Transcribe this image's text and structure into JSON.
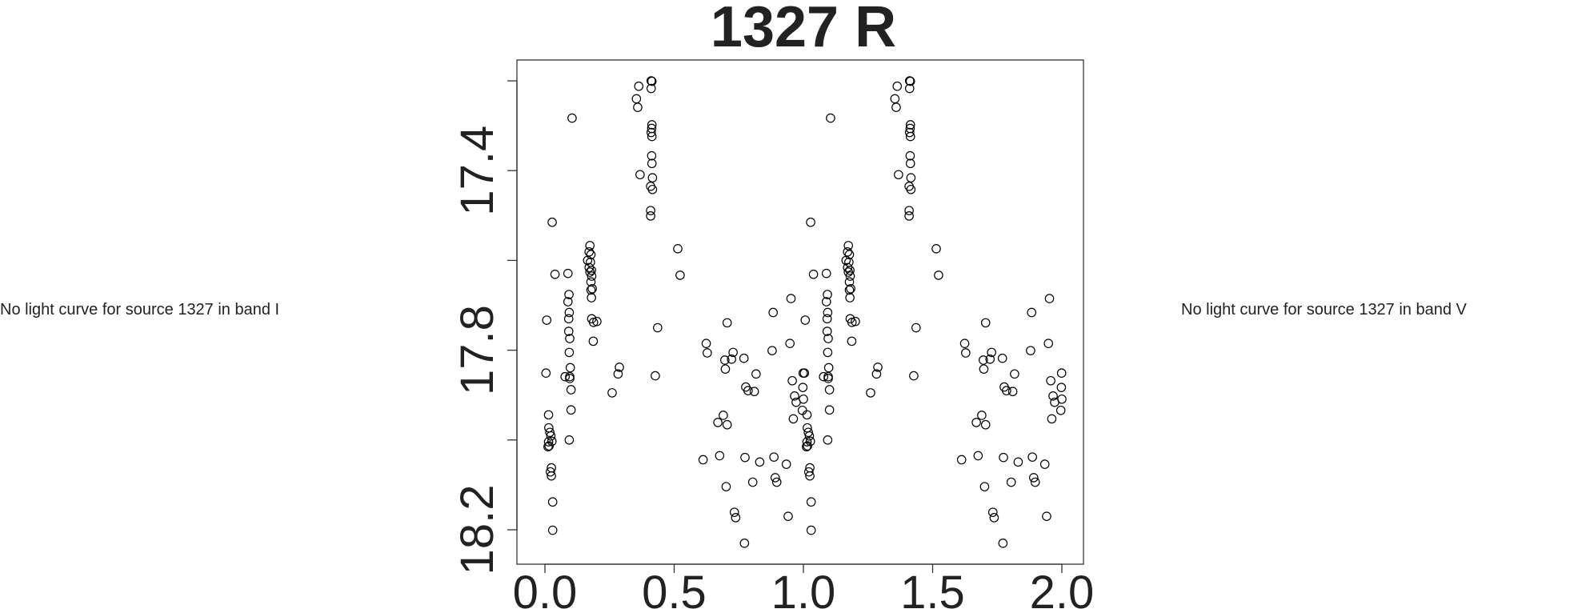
{
  "left_message": "No light curve for source 1327 in band I",
  "right_message": "No light curve for source 1327 in band V",
  "chart_data": {
    "type": "scatter",
    "title": "1327 R",
    "xlabel": "",
    "ylabel": "",
    "xlim": [
      0.0,
      2.0
    ],
    "ylim": [
      18.2,
      17.2
    ],
    "y_reversed": true,
    "x_ticks": [
      0.0,
      0.5,
      1.0,
      1.5,
      2.0
    ],
    "x_tick_labels": [
      "0.0",
      "0.5",
      "1.0",
      "1.5",
      "2.0"
    ],
    "y_ticks": [
      17.2,
      17.4,
      17.6,
      17.8,
      18.0,
      18.2
    ],
    "y_tick_labels": [
      "",
      "17.4",
      "",
      "17.8",
      "",
      "18.2"
    ],
    "grid": false,
    "marker": "open-circle",
    "marker_color": "#000000",
    "repeat_period": 1.0,
    "repeat_cycles": 2,
    "points": [
      [
        0.004,
        17.851
      ],
      [
        0.007,
        17.733
      ],
      [
        0.014,
        17.944
      ],
      [
        0.015,
        17.973
      ],
      [
        0.019,
        17.983
      ],
      [
        0.023,
        17.991
      ],
      [
        0.027,
        18.003
      ],
      [
        0.014,
        18.004
      ],
      [
        0.012,
        18.015
      ],
      [
        0.016,
        18.013
      ],
      [
        0.025,
        18.062
      ],
      [
        0.021,
        18.071
      ],
      [
        0.025,
        18.08
      ],
      [
        0.028,
        17.515
      ],
      [
        0.03,
        18.138
      ],
      [
        0.03,
        18.201
      ],
      [
        0.039,
        17.631
      ],
      [
        0.078,
        17.859
      ],
      [
        0.089,
        17.629
      ],
      [
        0.093,
        17.676
      ],
      [
        0.089,
        17.692
      ],
      [
        0.094,
        17.716
      ],
      [
        0.092,
        17.73
      ],
      [
        0.092,
        17.758
      ],
      [
        0.096,
        17.774
      ],
      [
        0.094,
        17.805
      ],
      [
        0.098,
        17.839
      ],
      [
        0.096,
        17.859
      ],
      [
        0.096,
        17.863
      ],
      [
        0.101,
        17.888
      ],
      [
        0.101,
        17.933
      ],
      [
        0.094,
        18.0
      ],
      [
        0.105,
        17.283
      ],
      [
        0.174,
        17.567
      ],
      [
        0.171,
        17.581
      ],
      [
        0.178,
        17.587
      ],
      [
        0.165,
        17.6
      ],
      [
        0.176,
        17.604
      ],
      [
        0.171,
        17.616
      ],
      [
        0.18,
        17.622
      ],
      [
        0.174,
        17.626
      ],
      [
        0.181,
        17.635
      ],
      [
        0.178,
        17.648
      ],
      [
        0.183,
        17.663
      ],
      [
        0.178,
        17.666
      ],
      [
        0.18,
        17.683
      ],
      [
        0.181,
        17.73
      ],
      [
        0.188,
        17.738
      ],
      [
        0.201,
        17.736
      ],
      [
        0.187,
        17.78
      ],
      [
        0.26,
        17.895
      ],
      [
        0.283,
        17.853
      ],
      [
        0.288,
        17.838
      ],
      [
        0.354,
        17.24
      ],
      [
        0.359,
        17.259
      ],
      [
        0.363,
        17.212
      ],
      [
        0.368,
        17.409
      ],
      [
        0.411,
        17.2
      ],
      [
        0.414,
        17.201
      ],
      [
        0.411,
        17.217
      ],
      [
        0.414,
        17.298
      ],
      [
        0.413,
        17.306
      ],
      [
        0.411,
        17.315
      ],
      [
        0.414,
        17.324
      ],
      [
        0.413,
        17.367
      ],
      [
        0.414,
        17.384
      ],
      [
        0.416,
        17.416
      ],
      [
        0.409,
        17.435
      ],
      [
        0.416,
        17.442
      ],
      [
        0.409,
        17.489
      ],
      [
        0.409,
        17.501
      ],
      [
        0.427,
        17.857
      ],
      [
        0.436,
        17.75
      ],
      [
        0.514,
        17.574
      ],
      [
        0.523,
        17.633
      ],
      [
        0.612,
        18.044
      ],
      [
        0.624,
        17.785
      ],
      [
        0.628,
        17.806
      ],
      [
        0.669,
        17.961
      ],
      [
        0.676,
        18.035
      ],
      [
        0.69,
        17.945
      ],
      [
        0.705,
        17.966
      ],
      [
        0.696,
        17.822
      ],
      [
        0.698,
        17.842
      ],
      [
        0.701,
        18.104
      ],
      [
        0.705,
        17.739
      ],
      [
        0.722,
        17.82
      ],
      [
        0.728,
        17.805
      ],
      [
        0.733,
        18.161
      ],
      [
        0.738,
        18.173
      ],
      [
        0.77,
        17.818
      ],
      [
        0.774,
        18.039
      ],
      [
        0.772,
        18.23
      ],
      [
        0.777,
        17.882
      ],
      [
        0.786,
        17.89
      ],
      [
        0.81,
        17.892
      ],
      [
        0.817,
        17.853
      ],
      [
        0.804,
        18.094
      ],
      [
        0.831,
        18.049
      ],
      [
        0.879,
        17.801
      ],
      [
        0.883,
        17.716
      ],
      [
        0.886,
        18.038
      ],
      [
        0.891,
        18.084
      ],
      [
        0.897,
        18.094
      ],
      [
        0.934,
        18.054
      ],
      [
        0.941,
        18.17
      ],
      [
        0.948,
        17.785
      ],
      [
        0.952,
        17.685
      ],
      [
        0.957,
        17.868
      ],
      [
        0.966,
        17.902
      ],
      [
        0.972,
        17.916
      ],
      [
        0.961,
        17.953
      ],
      [
        0.996,
        17.934
      ],
      [
        0.998,
        17.883
      ],
      [
        1.0,
        17.909
      ],
      [
        0.999,
        17.851
      ]
    ]
  }
}
